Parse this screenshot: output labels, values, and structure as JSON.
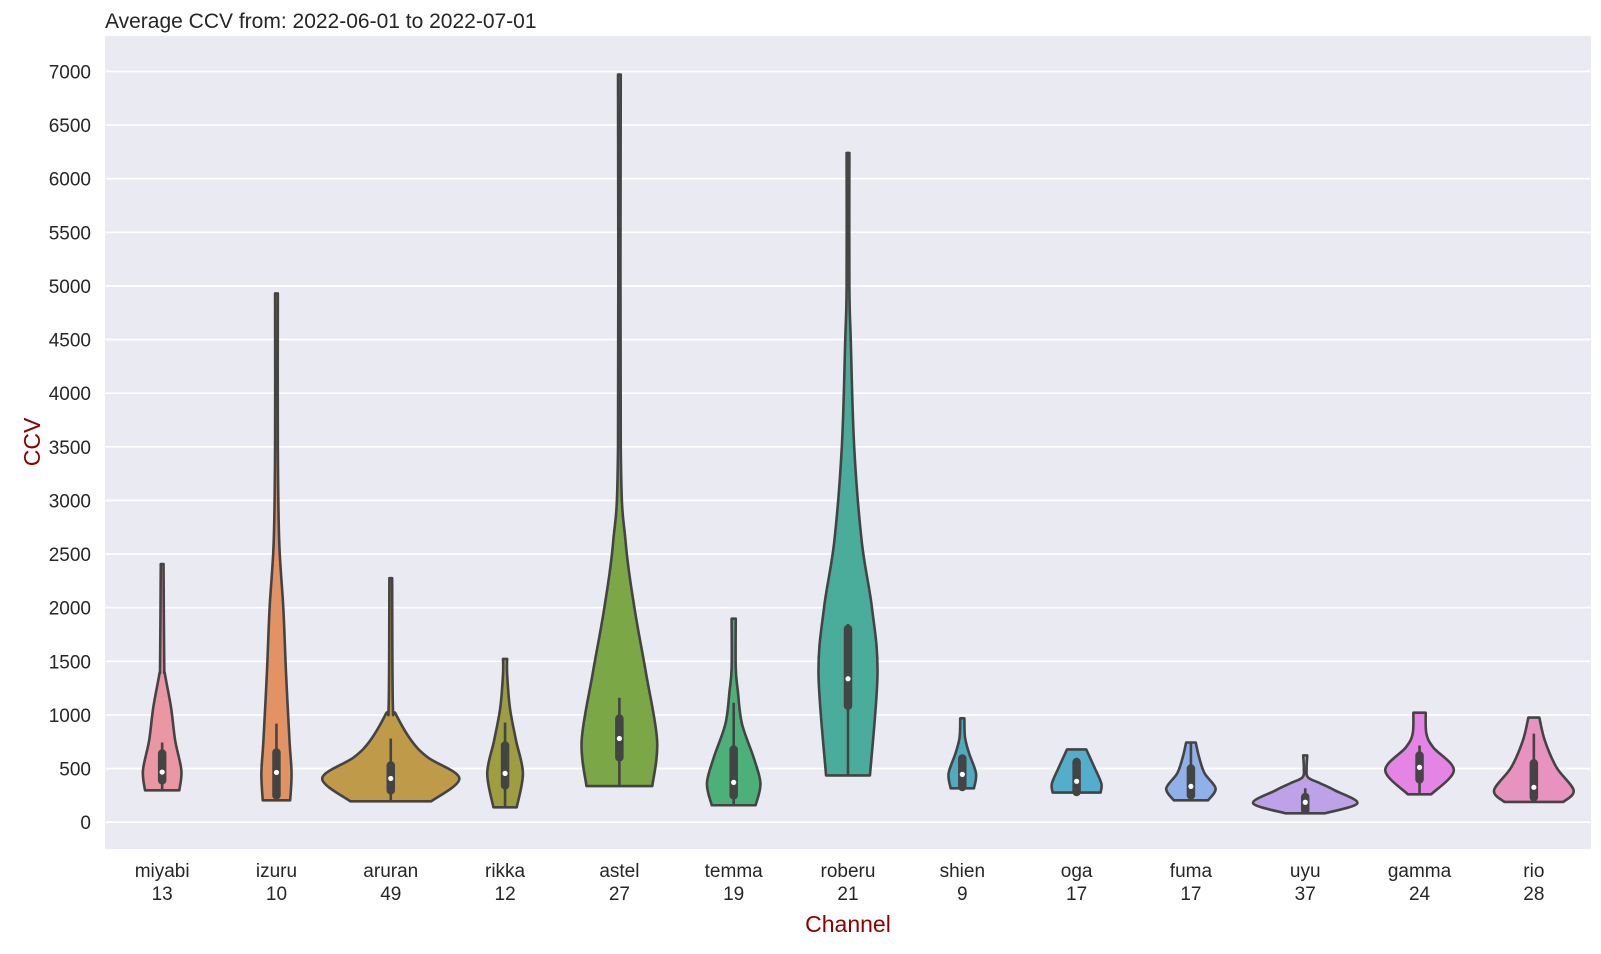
{
  "chart_data": {
    "type": "violin",
    "title": "Average CCV from: 2022-06-01 to 2022-07-01",
    "xlabel": "Channel",
    "ylabel": "CCV",
    "ylim": [
      -250,
      7330
    ],
    "yticks": [
      0,
      500,
      1000,
      1500,
      2000,
      2500,
      3000,
      3500,
      4000,
      4500,
      5000,
      5500,
      6000,
      6500,
      7000
    ],
    "grid": true,
    "label_color": "#8b0000",
    "background": "#eaeaf2",
    "outline_color": "#444444",
    "categories": [
      {
        "name": "miyabi",
        "count": "13",
        "color": "#ea96a3",
        "min": 297,
        "max": 2407,
        "q1": 390,
        "median": 467,
        "q3": 640,
        "whisker_low": 297,
        "whisker_high": 743,
        "density": [
          [
            297,
            0.25
          ],
          [
            483,
            0.28
          ],
          [
            761,
            0.19
          ],
          [
            1068,
            0.13
          ],
          [
            1383,
            0.04
          ],
          [
            1476,
            0.03
          ],
          [
            2407,
            0.02
          ]
        ]
      },
      {
        "name": "izuru",
        "count": "10",
        "color": "#e39363",
        "min": 204,
        "max": 4930,
        "q1": 250,
        "median": 464,
        "q3": 650,
        "whisker_low": 204,
        "whisker_high": 919,
        "density": [
          [
            204,
            0.2
          ],
          [
            455,
            0.22
          ],
          [
            761,
            0.19
          ],
          [
            1383,
            0.14
          ],
          [
            1996,
            0.1
          ],
          [
            2618,
            0.04
          ],
          [
            3500,
            0.02
          ],
          [
            4930,
            0.02
          ]
        ]
      },
      {
        "name": "aruran",
        "count": "49",
        "color": "#bf9a48",
        "min": 195,
        "max": 2275,
        "q1": 297,
        "median": 408,
        "q3": 529,
        "whisker_low": 195,
        "whisker_high": 780,
        "density": [
          [
            195,
            0.59
          ],
          [
            408,
            1.0
          ],
          [
            604,
            0.54
          ],
          [
            761,
            0.3
          ],
          [
            1012,
            0.07
          ],
          [
            1105,
            0.03
          ],
          [
            2275,
            0.02
          ]
        ]
      },
      {
        "name": "rikka",
        "count": "12",
        "color": "#9e9d40",
        "min": 139,
        "max": 1522,
        "q1": 343,
        "median": 455,
        "q3": 715,
        "whisker_low": 139,
        "whisker_high": 928,
        "density": [
          [
            139,
            0.17
          ],
          [
            455,
            0.26
          ],
          [
            761,
            0.16
          ],
          [
            1068,
            0.07
          ],
          [
            1383,
            0.03
          ],
          [
            1522,
            0.03
          ]
        ]
      },
      {
        "name": "astel",
        "count": "27",
        "color": "#7ca746",
        "min": 337,
        "max": 6970,
        "q1": 604,
        "median": 780,
        "q3": 966,
        "whisker_low": 337,
        "whisker_high": 1160,
        "density": [
          [
            337,
            0.48
          ],
          [
            761,
            0.55
          ],
          [
            1383,
            0.39
          ],
          [
            1996,
            0.22
          ],
          [
            2618,
            0.09
          ],
          [
            3500,
            0.02
          ],
          [
            6970,
            0.02
          ]
        ]
      },
      {
        "name": "temma",
        "count": "19",
        "color": "#4bb178",
        "min": 158,
        "max": 1897,
        "q1": 250,
        "median": 371,
        "q3": 678,
        "whisker_low": 158,
        "whisker_high": 1114,
        "density": [
          [
            158,
            0.32
          ],
          [
            362,
            0.39
          ],
          [
            604,
            0.29
          ],
          [
            919,
            0.12
          ],
          [
            1226,
            0.06
          ],
          [
            1439,
            0.03
          ],
          [
            1897,
            0.03
          ]
        ]
      },
      {
        "name": "roberu",
        "count": "21",
        "color": "#4aad9b",
        "min": 436,
        "max": 6240,
        "q1": 1086,
        "median": 1337,
        "q3": 1801,
        "whisker_low": 436,
        "whisker_high": 1848,
        "density": [
          [
            436,
            0.32
          ],
          [
            1383,
            0.43
          ],
          [
            1996,
            0.35
          ],
          [
            2618,
            0.2
          ],
          [
            3500,
            0.09
          ],
          [
            4500,
            0.04
          ],
          [
            5000,
            0.02
          ],
          [
            6240,
            0.02
          ]
        ]
      },
      {
        "name": "shien",
        "count": "9",
        "color": "#4eacbe",
        "min": 316,
        "max": 968,
        "q1": 328,
        "median": 446,
        "q3": 594,
        "whisker_low": 316,
        "whisker_high": 610,
        "density": [
          [
            316,
            0.17
          ],
          [
            455,
            0.2
          ],
          [
            640,
            0.1
          ],
          [
            789,
            0.04
          ],
          [
            968,
            0.03
          ]
        ]
      },
      {
        "name": "oga",
        "count": "17",
        "color": "#52aecb",
        "min": 276,
        "max": 678,
        "q1": 282,
        "median": 381,
        "q3": 560,
        "whisker_low": 276,
        "whisker_high": 600,
        "density": [
          [
            276,
            0.35
          ],
          [
            362,
            0.36
          ],
          [
            511,
            0.26
          ],
          [
            678,
            0.14
          ]
        ]
      },
      {
        "name": "fuma",
        "count": "17",
        "color": "#8fb0e8",
        "min": 204,
        "max": 743,
        "q1": 250,
        "median": 334,
        "q3": 501,
        "whisker_low": 204,
        "whisker_high": 743,
        "density": [
          [
            204,
            0.25
          ],
          [
            315,
            0.36
          ],
          [
            455,
            0.2
          ],
          [
            604,
            0.12
          ],
          [
            743,
            0.07
          ]
        ]
      },
      {
        "name": "uyu",
        "count": "37",
        "color": "#bea2e8",
        "min": 83,
        "max": 622,
        "q1": 111,
        "median": 186,
        "q3": 235,
        "whisker_low": 83,
        "whisker_high": 316,
        "density": [
          [
            83,
            0.29
          ],
          [
            176,
            0.76
          ],
          [
            297,
            0.43
          ],
          [
            362,
            0.22
          ],
          [
            418,
            0.04
          ],
          [
            500,
            0.02
          ],
          [
            622,
            0.03
          ]
        ]
      },
      {
        "name": "gamma",
        "count": "24",
        "color": "#e485e5",
        "min": 260,
        "max": 1021,
        "q1": 399,
        "median": 511,
        "q3": 622,
        "whisker_low": 260,
        "whisker_high": 715,
        "density": [
          [
            260,
            0.17
          ],
          [
            483,
            0.5
          ],
          [
            697,
            0.2
          ],
          [
            826,
            0.1
          ],
          [
            1021,
            0.09
          ]
        ]
      },
      {
        "name": "rio",
        "count": "28",
        "color": "#e892c0",
        "min": 189,
        "max": 975,
        "q1": 232,
        "median": 325,
        "q3": 548,
        "whisker_low": 189,
        "whisker_high": 826,
        "density": [
          [
            189,
            0.43
          ],
          [
            297,
            0.58
          ],
          [
            511,
            0.33
          ],
          [
            761,
            0.16
          ],
          [
            975,
            0.08
          ]
        ]
      }
    ]
  }
}
